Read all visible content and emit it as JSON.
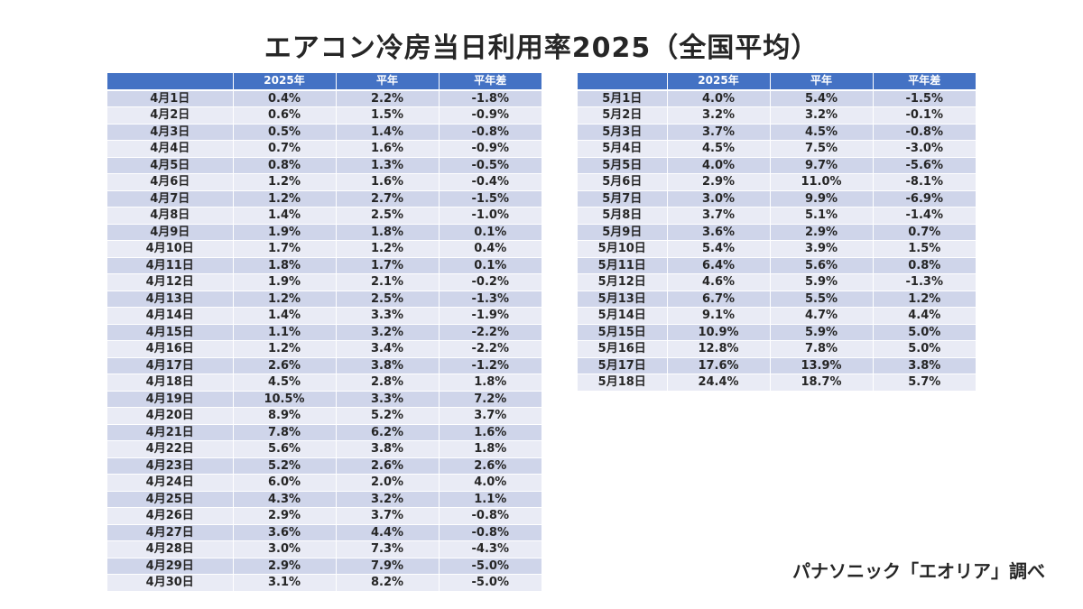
{
  "title": "エアコン冷房当日利用率2025（全国平均）",
  "source": "パナソニック「エオリア」調べ",
  "colors": {
    "header_bg": "#4472c4",
    "row_dark": "#cfd5ea",
    "row_light": "#e9ebf5"
  },
  "tables": [
    {
      "headers": [
        "",
        "2025年",
        "平年",
        "平年差"
      ],
      "rows": [
        [
          "4月1日",
          "0.4%",
          "2.2%",
          "-1.8%"
        ],
        [
          "4月2日",
          "0.6%",
          "1.5%",
          "-0.9%"
        ],
        [
          "4月3日",
          "0.5%",
          "1.4%",
          "-0.8%"
        ],
        [
          "4月4日",
          "0.7%",
          "1.6%",
          "-0.9%"
        ],
        [
          "4月5日",
          "0.8%",
          "1.3%",
          "-0.5%"
        ],
        [
          "4月6日",
          "1.2%",
          "1.6%",
          "-0.4%"
        ],
        [
          "4月7日",
          "1.2%",
          "2.7%",
          "-1.5%"
        ],
        [
          "4月8日",
          "1.4%",
          "2.5%",
          "-1.0%"
        ],
        [
          "4月9日",
          "1.9%",
          "1.8%",
          "0.1%"
        ],
        [
          "4月10日",
          "1.7%",
          "1.2%",
          "0.4%"
        ],
        [
          "4月11日",
          "1.8%",
          "1.7%",
          "0.1%"
        ],
        [
          "4月12日",
          "1.9%",
          "2.1%",
          "-0.2%"
        ],
        [
          "4月13日",
          "1.2%",
          "2.5%",
          "-1.3%"
        ],
        [
          "4月14日",
          "1.4%",
          "3.3%",
          "-1.9%"
        ],
        [
          "4月15日",
          "1.1%",
          "3.2%",
          "-2.2%"
        ],
        [
          "4月16日",
          "1.2%",
          "3.4%",
          "-2.2%"
        ],
        [
          "4月17日",
          "2.6%",
          "3.8%",
          "-1.2%"
        ],
        [
          "4月18日",
          "4.5%",
          "2.8%",
          "1.8%"
        ],
        [
          "4月19日",
          "10.5%",
          "3.3%",
          "7.2%"
        ],
        [
          "4月20日",
          "8.9%",
          "5.2%",
          "3.7%"
        ],
        [
          "4月21日",
          "7.8%",
          "6.2%",
          "1.6%"
        ],
        [
          "4月22日",
          "5.6%",
          "3.8%",
          "1.8%"
        ],
        [
          "4月23日",
          "5.2%",
          "2.6%",
          "2.6%"
        ],
        [
          "4月24日",
          "6.0%",
          "2.0%",
          "4.0%"
        ],
        [
          "4月25日",
          "4.3%",
          "3.2%",
          "1.1%"
        ],
        [
          "4月26日",
          "2.9%",
          "3.7%",
          "-0.8%"
        ],
        [
          "4月27日",
          "3.6%",
          "4.4%",
          "-0.8%"
        ],
        [
          "4月28日",
          "3.0%",
          "7.3%",
          "-4.3%"
        ],
        [
          "4月29日",
          "2.9%",
          "7.9%",
          "-5.0%"
        ],
        [
          "4月30日",
          "3.1%",
          "8.2%",
          "-5.0%"
        ]
      ]
    },
    {
      "headers": [
        "",
        "2025年",
        "平年",
        "平年差"
      ],
      "rows": [
        [
          "5月1日",
          "4.0%",
          "5.4%",
          "-1.5%"
        ],
        [
          "5月2日",
          "3.2%",
          "3.2%",
          "-0.1%"
        ],
        [
          "5月3日",
          "3.7%",
          "4.5%",
          "-0.8%"
        ],
        [
          "5月4日",
          "4.5%",
          "7.5%",
          "-3.0%"
        ],
        [
          "5月5日",
          "4.0%",
          "9.7%",
          "-5.6%"
        ],
        [
          "5月6日",
          "2.9%",
          "11.0%",
          "-8.1%"
        ],
        [
          "5月7日",
          "3.0%",
          "9.9%",
          "-6.9%"
        ],
        [
          "5月8日",
          "3.7%",
          "5.1%",
          "-1.4%"
        ],
        [
          "5月9日",
          "3.6%",
          "2.9%",
          "0.7%"
        ],
        [
          "5月10日",
          "5.4%",
          "3.9%",
          "1.5%"
        ],
        [
          "5月11日",
          "6.4%",
          "5.6%",
          "0.8%"
        ],
        [
          "5月12日",
          "4.6%",
          "5.9%",
          "-1.3%"
        ],
        [
          "5月13日",
          "6.7%",
          "5.5%",
          "1.2%"
        ],
        [
          "5月14日",
          "9.1%",
          "4.7%",
          "4.4%"
        ],
        [
          "5月15日",
          "10.9%",
          "5.9%",
          "5.0%"
        ],
        [
          "5月16日",
          "12.8%",
          "7.8%",
          "5.0%"
        ],
        [
          "5月17日",
          "17.6%",
          "13.9%",
          "3.8%"
        ],
        [
          "5月18日",
          "24.4%",
          "18.7%",
          "5.7%"
        ]
      ]
    }
  ]
}
